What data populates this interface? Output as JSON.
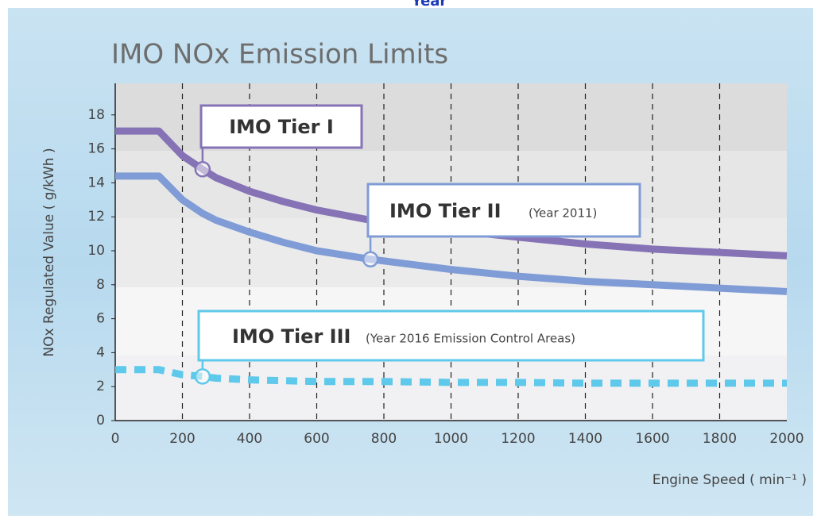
{
  "header_fragment": "Year",
  "chart_data": {
    "type": "line",
    "title": "IMO NOx Emission Limits",
    "x_label": "Engine Speed ( min⁻¹ )",
    "y_label": "NOx Regulated Value ( g/kWh )",
    "x": [
      0,
      130,
      200,
      260,
      300,
      400,
      500,
      600,
      760,
      800,
      1000,
      1200,
      1400,
      1600,
      1800,
      2000
    ],
    "series": [
      {
        "name": "IMO Tier I",
        "color": "#8673b6",
        "dashed": false,
        "marker_x": 260,
        "values": [
          17.05,
          17.05,
          15.6,
          14.8,
          14.3,
          13.5,
          12.9,
          12.4,
          11.8,
          11.7,
          11.2,
          10.8,
          10.4,
          10.1,
          9.9,
          9.7
        ]
      },
      {
        "name": "IMO Tier II",
        "color": "#809cd6",
        "dashed": false,
        "marker_x": 760,
        "note": "(Year 2011)",
        "values": [
          14.4,
          14.4,
          13.0,
          12.2,
          11.8,
          11.1,
          10.5,
          10.0,
          9.5,
          9.4,
          8.9,
          8.5,
          8.2,
          8.0,
          7.8,
          7.6
        ]
      },
      {
        "name": "IMO Tier III",
        "color": "#5ec9ea",
        "dashed": true,
        "marker_x": 260,
        "note": "(Year 2016 Emission Control Areas)",
        "values": [
          3.0,
          3.0,
          2.7,
          2.6,
          2.5,
          2.4,
          2.35,
          2.3,
          2.3,
          2.3,
          2.25,
          2.25,
          2.2,
          2.2,
          2.2,
          2.2
        ]
      }
    ],
    "xlim": [
      0,
      2000
    ],
    "xticks": [
      0,
      200,
      400,
      600,
      800,
      1000,
      1200,
      1400,
      1600,
      1800,
      2000
    ],
    "ylim": [
      0,
      20
    ],
    "yticks": [
      0,
      2,
      4,
      6,
      8,
      10,
      12,
      14,
      16,
      18
    ],
    "grid": true
  }
}
